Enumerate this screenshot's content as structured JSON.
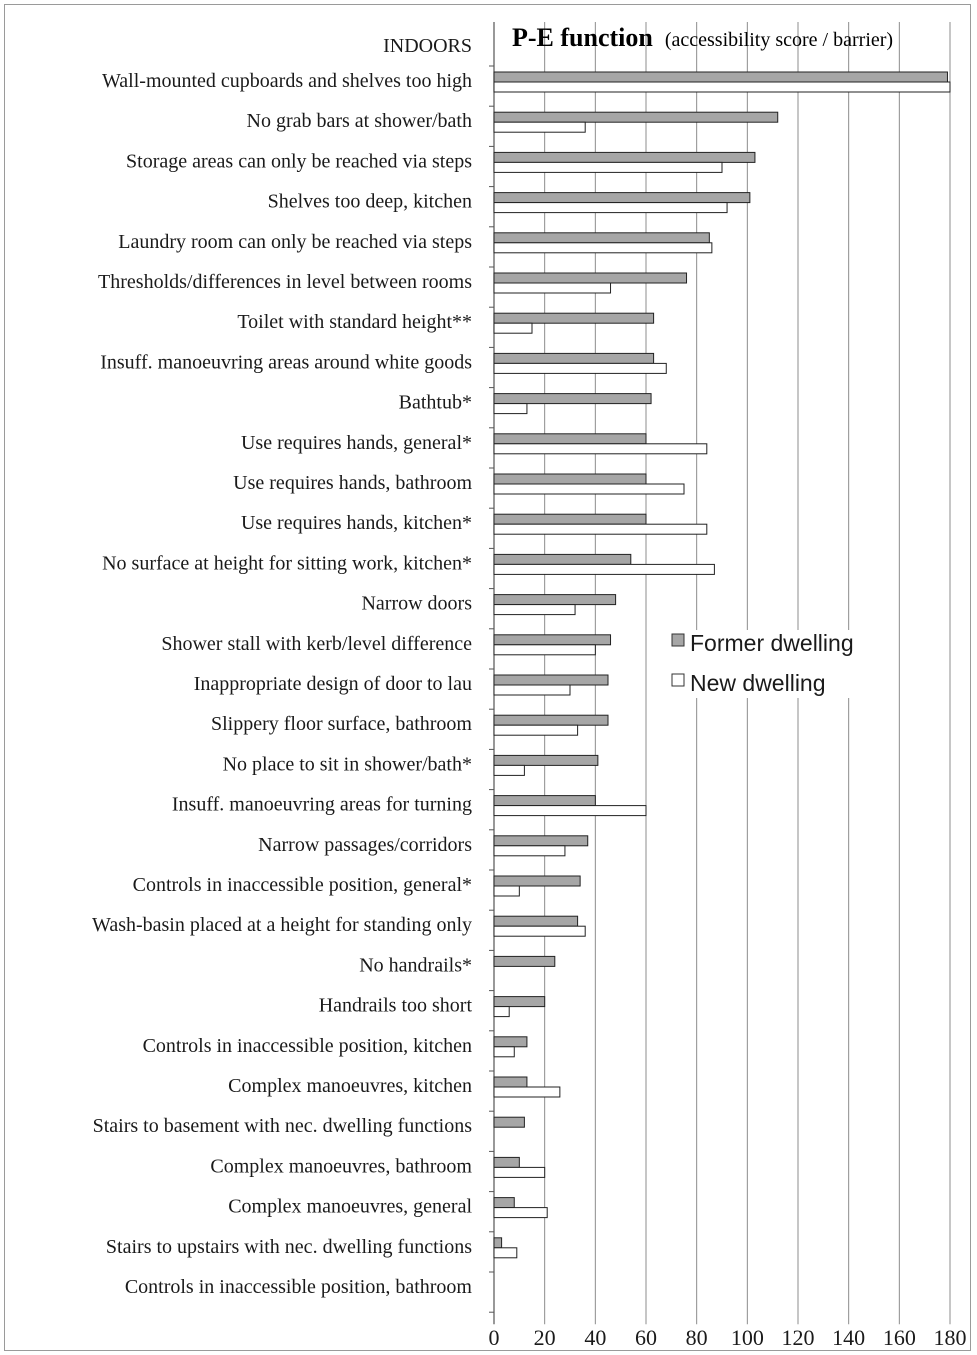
{
  "chart_data": {
    "type": "bar",
    "orientation": "horizontal",
    "title": "P-E function",
    "subtitle": "(accessibility score / barrier)",
    "category_header": "INDOORS",
    "xlim": [
      0,
      180
    ],
    "xticks": [
      0,
      20,
      40,
      60,
      80,
      100,
      120,
      140,
      160,
      180
    ],
    "grid": true,
    "legend_position": "right",
    "categories": [
      "Wall-mounted cupboards and shelves too high",
      "No grab bars at shower/bath",
      "Storage areas can only be reached via steps",
      "Shelves too deep, kitchen",
      "Laundry room can only be reached via steps",
      "Thresholds/differences in level between rooms",
      "Toilet with standard height**",
      "Insuff. manoeuvring areas around white goods",
      "Bathtub*",
      "Use requires hands, general*",
      "Use requires hands, bathroom",
      "Use requires hands, kitchen*",
      "No surface at height for sitting work, kitchen*",
      "Narrow doors",
      "Shower stall with kerb/level difference",
      "Inappropriate design of door to lau",
      "Slippery floor surface, bathroom",
      "No place to sit in shower/bath*",
      "Insuff. manoeuvring areas for turning",
      "Narrow passages/corridors",
      "Controls in inaccessible position, general*",
      "Wash-basin placed at a height for standing only",
      "No handrails*",
      "Handrails too short",
      "Controls in inaccessible position, kitchen",
      "Complex manoeuvres, kitchen",
      "Stairs to basement with nec. dwelling functions",
      "Complex manoeuvres, bathroom",
      "Complex manoeuvres, general",
      "Stairs to upstairs with nec. dwelling functions",
      "Controls in inaccessible position, bathroom"
    ],
    "series": [
      {
        "name": "Former dwelling",
        "color": "#a6a6a6",
        "values": [
          179,
          112,
          103,
          101,
          85,
          76,
          63,
          63,
          62,
          60,
          60,
          60,
          54,
          48,
          46,
          45,
          45,
          41,
          40,
          37,
          34,
          33,
          24,
          20,
          13,
          13,
          12,
          10,
          8,
          3,
          0
        ]
      },
      {
        "name": "New dwelling",
        "color": "#ffffff",
        "values": [
          180,
          36,
          90,
          92,
          86,
          46,
          15,
          68,
          13,
          84,
          75,
          84,
          87,
          32,
          40,
          30,
          33,
          12,
          60,
          28,
          10,
          36,
          0,
          6,
          8,
          26,
          0,
          20,
          21,
          9,
          0
        ]
      }
    ]
  }
}
